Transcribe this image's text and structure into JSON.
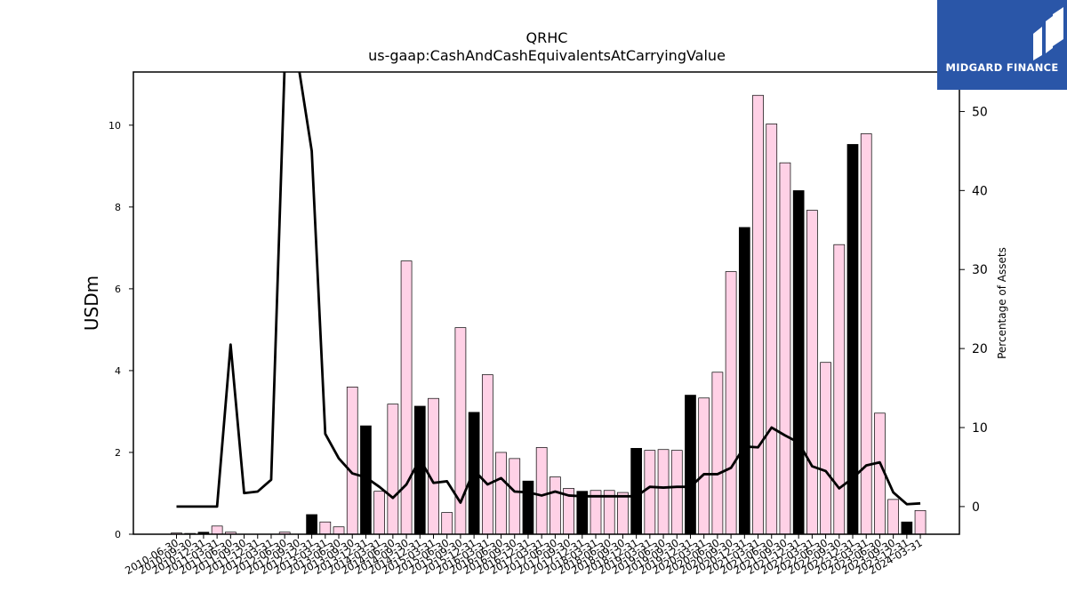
{
  "brand": {
    "name": "MIDGARD FINANCE",
    "color": "#2a56a8"
  },
  "chart_data": {
    "type": "bar",
    "title": "QRHC",
    "subtitle": "us-gaap:CashAndCashEquivalentsAtCarryingValue",
    "ylabel": "USDm",
    "y2label": "Percentage of Assets",
    "ylim": [
      0,
      11.3
    ],
    "y2lim": [
      -3.5,
      55.0
    ],
    "yticks": [
      0,
      2,
      4,
      6,
      8,
      10
    ],
    "y2ticks": [
      0,
      10,
      20,
      30,
      40,
      50
    ],
    "categories": [
      "2010-06-30",
      "2010-09-30",
      "2010-12-31",
      "2011-03-31",
      "2011-06-30",
      "2011-09-30",
      "2011-12-31",
      "2012-03-31",
      "2012-06-30",
      "2012-09-30",
      "2012-12-31",
      "2013-03-31",
      "2013-06-30",
      "2013-09-30",
      "2013-12-31",
      "2014-03-31",
      "2014-06-30",
      "2014-09-30",
      "2014-12-31",
      "2015-03-31",
      "2015-06-30",
      "2015-09-30",
      "2015-12-31",
      "2016-03-31",
      "2016-06-30",
      "2016-09-30",
      "2016-12-31",
      "2017-03-31",
      "2017-06-30",
      "2017-09-30",
      "2017-12-31",
      "2018-03-31",
      "2018-06-30",
      "2018-09-30",
      "2018-12-31",
      "2019-03-31",
      "2019-06-30",
      "2019-09-30",
      "2019-12-31",
      "2020-03-31",
      "2020-06-30",
      "2020-09-30",
      "2020-12-31",
      "2021-03-31",
      "2021-06-30",
      "2021-09-30",
      "2021-12-31",
      "2022-03-31",
      "2022-06-30",
      "2022-09-30",
      "2022-12-31",
      "2023-03-31",
      "2023-06-30",
      "2023-09-30",
      "2023-12-31",
      "2024-03-31"
    ],
    "series": [
      {
        "kind": "bar",
        "values": [
          0.03,
          0.02,
          0.05,
          0.2,
          0.05,
          0.0,
          0.0,
          0.0,
          0.05,
          0.0,
          0.48,
          0.3,
          0.18,
          3.6,
          2.65,
          1.05,
          3.18,
          6.68,
          3.13,
          3.32,
          0.53,
          5.05,
          2.98,
          3.9,
          2.0,
          1.85,
          1.3,
          2.12,
          1.4,
          1.12,
          1.05,
          1.07,
          1.07,
          1.02,
          2.1,
          2.05,
          2.07,
          2.05,
          3.4,
          3.33,
          3.96,
          6.42,
          7.5,
          10.73,
          10.03,
          9.08,
          8.4,
          7.92,
          4.2,
          7.08,
          9.53,
          9.79,
          2.96,
          0.85,
          0.3,
          0.58
        ],
        "highlight_color": "#000000",
        "color": "#ffd1e6",
        "highlighted": [
          false,
          false,
          true,
          false,
          false,
          false,
          false,
          false,
          false,
          false,
          true,
          false,
          false,
          false,
          true,
          false,
          false,
          false,
          true,
          false,
          false,
          false,
          true,
          false,
          false,
          false,
          true,
          false,
          false,
          false,
          true,
          false,
          false,
          false,
          true,
          false,
          false,
          false,
          true,
          false,
          false,
          false,
          true,
          false,
          false,
          false,
          true,
          false,
          false,
          false,
          true,
          false,
          false,
          false,
          true,
          false
        ]
      },
      {
        "kind": "line",
        "axis": "right",
        "color": "#000000",
        "values": [
          0.0,
          0.0,
          0.0,
          0.0,
          20.5,
          1.7,
          1.9,
          3.4,
          56.0,
          56.0,
          45.0,
          9.2,
          6.1,
          4.2,
          3.7,
          2.5,
          1.1,
          2.8,
          6.0,
          3.0,
          3.2,
          0.5,
          4.6,
          2.8,
          3.6,
          1.9,
          1.8,
          1.4,
          1.9,
          1.4,
          1.3,
          1.3,
          1.3,
          1.3,
          1.3,
          2.5,
          2.4,
          2.5,
          2.5,
          4.1,
          4.1,
          4.9,
          7.6,
          7.5,
          10.0,
          9.0,
          8.1,
          5.1,
          4.5,
          2.3,
          3.6,
          5.2,
          5.6,
          1.8,
          0.3,
          0.4
        ]
      }
    ],
    "grid": false,
    "legend": "none"
  }
}
